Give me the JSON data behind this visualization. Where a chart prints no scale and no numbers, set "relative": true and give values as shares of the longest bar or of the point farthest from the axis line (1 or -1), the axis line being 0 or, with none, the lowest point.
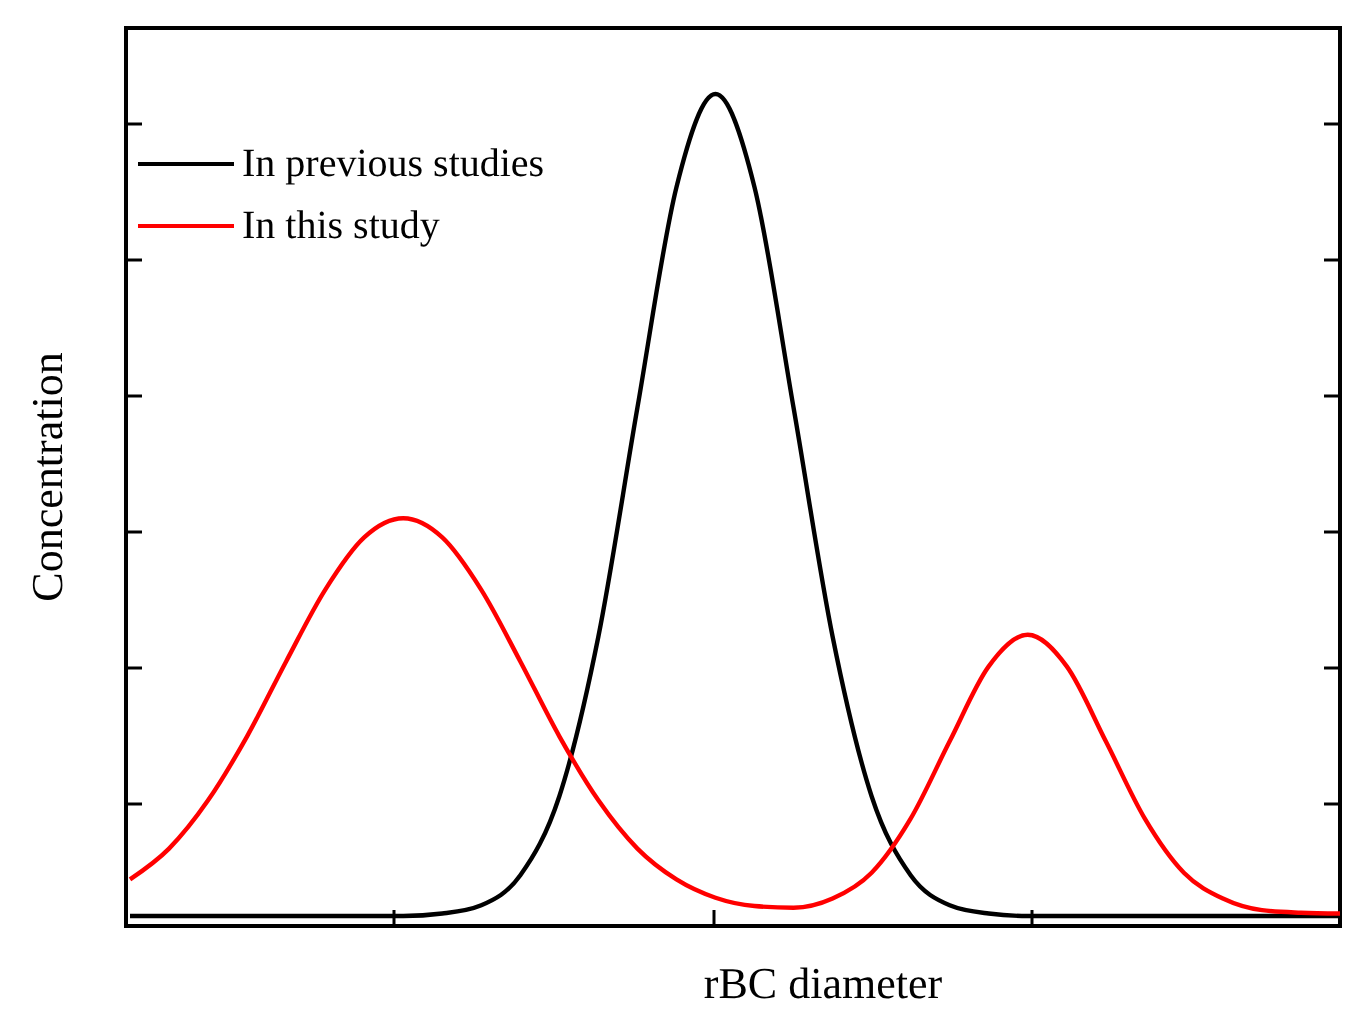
{
  "chart_data": {
    "type": "line",
    "relative": true,
    "xlabel": "rBC diameter",
    "ylabel": "Concentration",
    "legend": "top left",
    "line_style": "solid",
    "marker": "none",
    "categories": [
      null,
      null,
      null,
      null,
      null,
      null,
      null,
      null,
      null,
      null,
      null,
      null,
      null,
      null,
      null,
      null,
      null,
      null,
      null,
      null,
      null,
      null,
      null,
      null,
      null,
      null,
      null,
      null,
      null,
      null,
      null,
      null
    ],
    "series": [
      {
        "name": "In previous studies",
        "color": "#000000",
        "values": [
          0.012,
          0.012,
          0.012,
          0.012,
          0.012,
          0.012,
          0.012,
          0.012,
          0.015,
          0.025,
          0.061,
          0.156,
          0.348,
          0.623,
          0.888,
          1,
          0.888,
          0.623,
          0.348,
          0.156,
          0.061,
          0.025,
          0.015,
          0.012,
          0.012,
          0.012,
          0.012,
          0.012,
          0.012,
          0.012,
          0.012,
          0.012
        ]
      },
      {
        "name": "In this study",
        "color": "#ff0000",
        "values": [
          0.056,
          0.093,
          0.151,
          0.228,
          0.318,
          0.404,
          0.467,
          0.49,
          0.467,
          0.404,
          0.318,
          0.228,
          0.151,
          0.093,
          0.056,
          0.034,
          0.024,
          0.022,
          0.033,
          0.064,
          0.129,
          0.222,
          0.312,
          0.35,
          0.312,
          0.222,
          0.129,
          0.064,
          0.033,
          0.019,
          0.016,
          0.015
        ]
      }
    ]
  }
}
